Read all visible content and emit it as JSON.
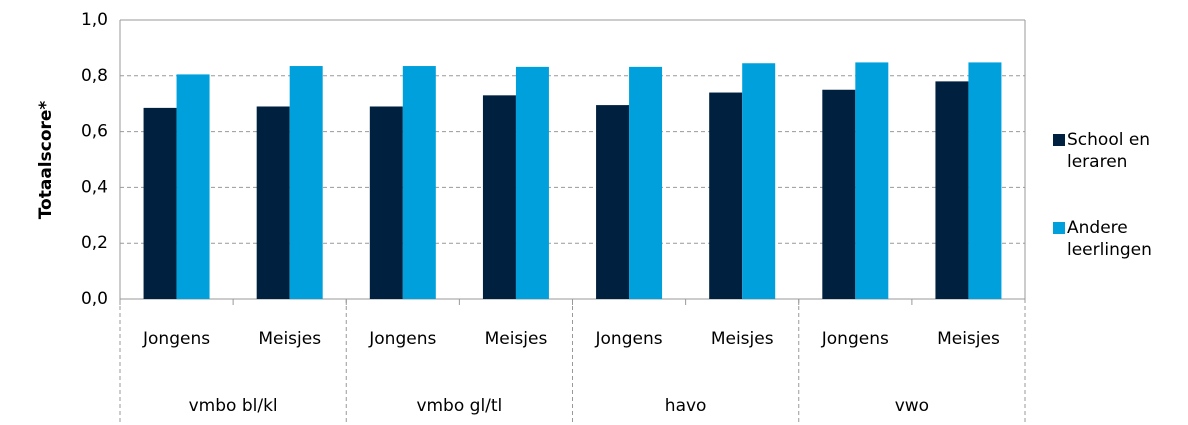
{
  "chart_data": {
    "type": "bar",
    "y_label": "Totaalscore*",
    "categories": [
      "Jongens",
      "Meisjes",
      "Jongens",
      "Meisjes",
      "Jongens",
      "Meisjes",
      "Jongens",
      "Meisjes"
    ],
    "groups": [
      "vmbo bl/kl",
      "vmbo gl/tl",
      "havo",
      "vwo"
    ],
    "series": [
      {
        "name": "School en leraren",
        "color": "#00203f",
        "values": [
          0.685,
          0.69,
          0.69,
          0.73,
          0.695,
          0.74,
          0.75,
          0.78
        ]
      },
      {
        "name": "Andere leerlingen",
        "color": "#00a0dc",
        "values": [
          0.805,
          0.835,
          0.835,
          0.832,
          0.832,
          0.845,
          0.848,
          0.848
        ]
      }
    ],
    "ylim": [
      0,
      1
    ],
    "yticks": [
      {
        "value": 0,
        "label": "0,0"
      },
      {
        "value": 0.2,
        "label": "0,2"
      },
      {
        "value": 0.4,
        "label": "0,4"
      },
      {
        "value": 0.6,
        "label": "0,6"
      },
      {
        "value": 0.8,
        "label": "0,8"
      },
      {
        "value": 1,
        "label": "1,0"
      }
    ],
    "grid": true,
    "legend": "right"
  }
}
